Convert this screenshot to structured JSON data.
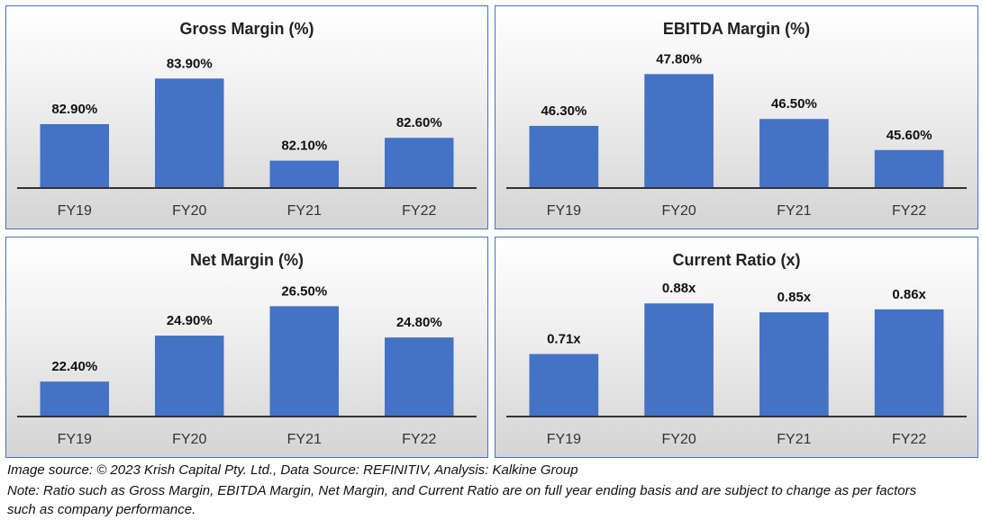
{
  "footer": {
    "source": "Image source: © 2023 Krish Capital Pty. Ltd., Data Source: REFINITIV, Analysis: Kalkine Group",
    "note": "Note: Ratio such as Gross Margin, EBITDA Margin, Net Margin, and Current Ratio are on full year ending basis and are subject to change as per factors such as company performance."
  },
  "colors": {
    "bar": "#4472c4",
    "border": "#4472c4",
    "axis": "#333333"
  },
  "chart_data": [
    {
      "type": "bar",
      "title": "Gross Margin (%)",
      "categories": [
        "FY19",
        "FY20",
        "FY21",
        "FY22"
      ],
      "values": [
        82.9,
        83.9,
        82.1,
        82.6
      ],
      "labels": [
        "82.90%",
        "83.90%",
        "82.10%",
        "82.60%"
      ],
      "ylim": [
        81.5,
        84.3
      ],
      "grid": false,
      "legend": "none"
    },
    {
      "type": "bar",
      "title": "EBITDA Margin (%)",
      "categories": [
        "FY19",
        "FY20",
        "FY21",
        "FY22"
      ],
      "values": [
        46.3,
        47.8,
        46.5,
        45.6
      ],
      "labels": [
        "46.30%",
        "47.80%",
        "46.50%",
        "45.60%"
      ],
      "ylim": [
        44.5,
        48.2
      ],
      "grid": false,
      "legend": "none"
    },
    {
      "type": "bar",
      "title": "Net Margin (%)",
      "categories": [
        "FY19",
        "FY20",
        "FY21",
        "FY22"
      ],
      "values": [
        22.4,
        24.9,
        26.5,
        24.8
      ],
      "labels": [
        "22.40%",
        "24.90%",
        "26.50%",
        "24.80%"
      ],
      "ylim": [
        20.5,
        27.3
      ],
      "grid": false,
      "legend": "none"
    },
    {
      "type": "bar",
      "title": "Current Ratio (x)",
      "categories": [
        "FY19",
        "FY20",
        "FY21",
        "FY22"
      ],
      "values": [
        0.71,
        0.88,
        0.85,
        0.86
      ],
      "labels": [
        "0.71x",
        "0.88x",
        "0.85x",
        "0.86x"
      ],
      "ylim": [
        0.5,
        0.92
      ],
      "grid": false,
      "legend": "none"
    }
  ]
}
